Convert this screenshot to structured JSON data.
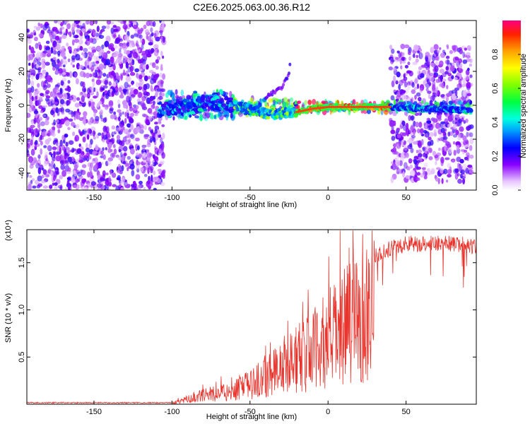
{
  "title": "C2E6.2025.063.00.36.R12",
  "chart_data": [
    {
      "type": "heatmap",
      "title": "C2E6.2025.063.00.36.R12",
      "xlabel": "Height of straight line (km)",
      "ylabel": "Frequency (Hz)",
      "xlim": [
        -193,
        95
      ],
      "ylim": [
        -50,
        50
      ],
      "x_ticks": [
        -150,
        -100,
        -50,
        0,
        50
      ],
      "y_ticks": [
        -40,
        -20,
        0,
        20,
        40
      ],
      "colorbar": {
        "label": "Normalized spectral amplitude",
        "range": [
          0,
          1
        ],
        "ticks": [
          "0.0",
          "0.2",
          "0.4",
          "0.6",
          "0.8"
        ],
        "colormap": "rainbow"
      },
      "regions": [
        {
          "x_range": [
            -193,
            -105
          ],
          "freq_range": [
            -50,
            50
          ],
          "amplitude": 0.15
        },
        {
          "x_range": [
            -105,
            -60
          ],
          "freq_range": [
            -8,
            8
          ],
          "amplitude": 0.35
        },
        {
          "x_range": [
            -60,
            -20
          ],
          "freq_range": [
            -6,
            4
          ],
          "amplitude": 0.5
        },
        {
          "x_range": [
            -20,
            40
          ],
          "freq_range": [
            -4,
            2
          ],
          "amplitude": 0.85
        },
        {
          "x_range": [
            40,
            92
          ],
          "freq_range": [
            -45,
            35
          ],
          "amplitude": 0.15
        },
        {
          "x_range": [
            40,
            92
          ],
          "freq_range": [
            -4,
            2
          ],
          "amplitude": 0.4
        }
      ],
      "ridge": [
        {
          "x": -105,
          "f": -2
        },
        {
          "x": -90,
          "f": -1
        },
        {
          "x": -75,
          "f": 2
        },
        {
          "x": -60,
          "f": 0
        },
        {
          "x": -50,
          "f": -2
        },
        {
          "x": -40,
          "f": -5
        },
        {
          "x": -30,
          "f": -5
        },
        {
          "x": -20,
          "f": -4
        },
        {
          "x": -10,
          "f": -2
        },
        {
          "x": 0,
          "f": -1
        },
        {
          "x": 20,
          "f": -1
        },
        {
          "x": 40,
          "f": -1
        },
        {
          "x": 60,
          "f": -2
        },
        {
          "x": 92,
          "f": -3
        }
      ],
      "side_ridge": [
        {
          "x": -40,
          "f": 5
        },
        {
          "x": -30,
          "f": 10
        },
        {
          "x": -25,
          "f": 18
        },
        {
          "x": -24,
          "f": 27
        }
      ]
    },
    {
      "type": "line",
      "xlabel": "Height of straight line (km)",
      "ylabel": "SNR (10 * v/v)",
      "y_multiplier": "(x10⁴)",
      "xlim": [
        -193,
        95
      ],
      "ylim": [
        0,
        1.85
      ],
      "x_ticks": [
        -150,
        -100,
        -50,
        0,
        50
      ],
      "y_ticks": [
        0.5,
        1.0,
        1.5
      ],
      "y_tick_labels": [
        "0.5",
        "1.0",
        "1.5"
      ],
      "color": "#e8342c",
      "envelope": [
        {
          "x": -193,
          "y": 0.01
        },
        {
          "x": -110,
          "y": 0.01
        },
        {
          "x": -100,
          "y": 0.02
        },
        {
          "x": -90,
          "y": 0.08
        },
        {
          "x": -80,
          "y": 0.14
        },
        {
          "x": -70,
          "y": 0.18
        },
        {
          "x": -60,
          "y": 0.22
        },
        {
          "x": -52,
          "y": 0.3
        },
        {
          "x": -45,
          "y": 0.38
        },
        {
          "x": -38,
          "y": 0.5
        },
        {
          "x": -30,
          "y": 0.62
        },
        {
          "x": -22,
          "y": 0.72
        },
        {
          "x": -15,
          "y": 0.8
        },
        {
          "x": -8,
          "y": 0.9
        },
        {
          "x": 0,
          "y": 1.05
        },
        {
          "x": 8,
          "y": 1.2
        },
        {
          "x": 15,
          "y": 1.35
        },
        {
          "x": 22,
          "y": 1.5
        },
        {
          "x": 30,
          "y": 1.62
        },
        {
          "x": 40,
          "y": 1.7
        },
        {
          "x": 50,
          "y": 1.75
        },
        {
          "x": 60,
          "y": 1.76
        },
        {
          "x": 70,
          "y": 1.76
        },
        {
          "x": 80,
          "y": 1.75
        },
        {
          "x": 90,
          "y": 1.74
        },
        {
          "x": 95,
          "y": 1.7
        }
      ]
    }
  ]
}
